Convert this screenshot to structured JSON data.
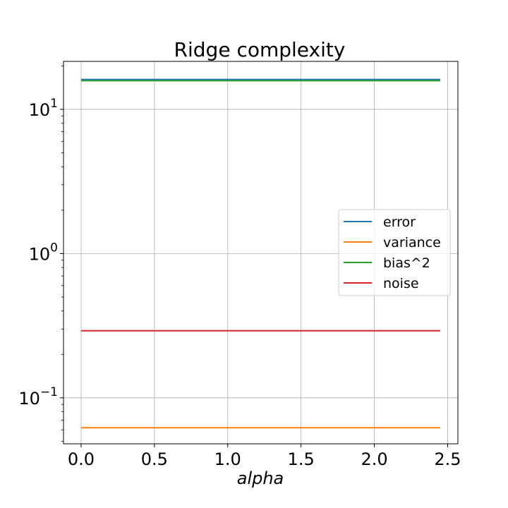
{
  "chart_data": {
    "type": "line",
    "title": "Ridge complexity",
    "xlabel": "alpha",
    "ylabel": "",
    "xlim": [
      -0.12,
      2.57
    ],
    "ylim": [
      0.048,
      21.5
    ],
    "yscale": "log",
    "grid": true,
    "legend_position": "center-right",
    "x": [
      0.0,
      2.45
    ],
    "xticks": [
      0.0,
      0.5,
      1.0,
      1.5,
      2.0,
      2.5
    ],
    "xtick_labels": [
      "0.0",
      "0.5",
      "1.0",
      "1.5",
      "2.0",
      "2.5"
    ],
    "yticks": [
      {
        "value": 10,
        "base": "10",
        "exponent": "1"
      },
      {
        "value": 1,
        "base": "10",
        "exponent": "0"
      },
      {
        "value": 0.1,
        "base": "10",
        "exponent": "−1"
      }
    ],
    "series": [
      {
        "name": "error",
        "color": "#1f77b4",
        "values": [
          16.1,
          16.1
        ]
      },
      {
        "name": "variance",
        "color": "#ff7f0e",
        "values": [
          0.062,
          0.062
        ]
      },
      {
        "name": "bias^2",
        "color": "#2ca02c",
        "values": [
          15.8,
          15.8
        ]
      },
      {
        "name": "noise",
        "color": "#d62728",
        "values": [
          0.292,
          0.292
        ]
      }
    ]
  }
}
